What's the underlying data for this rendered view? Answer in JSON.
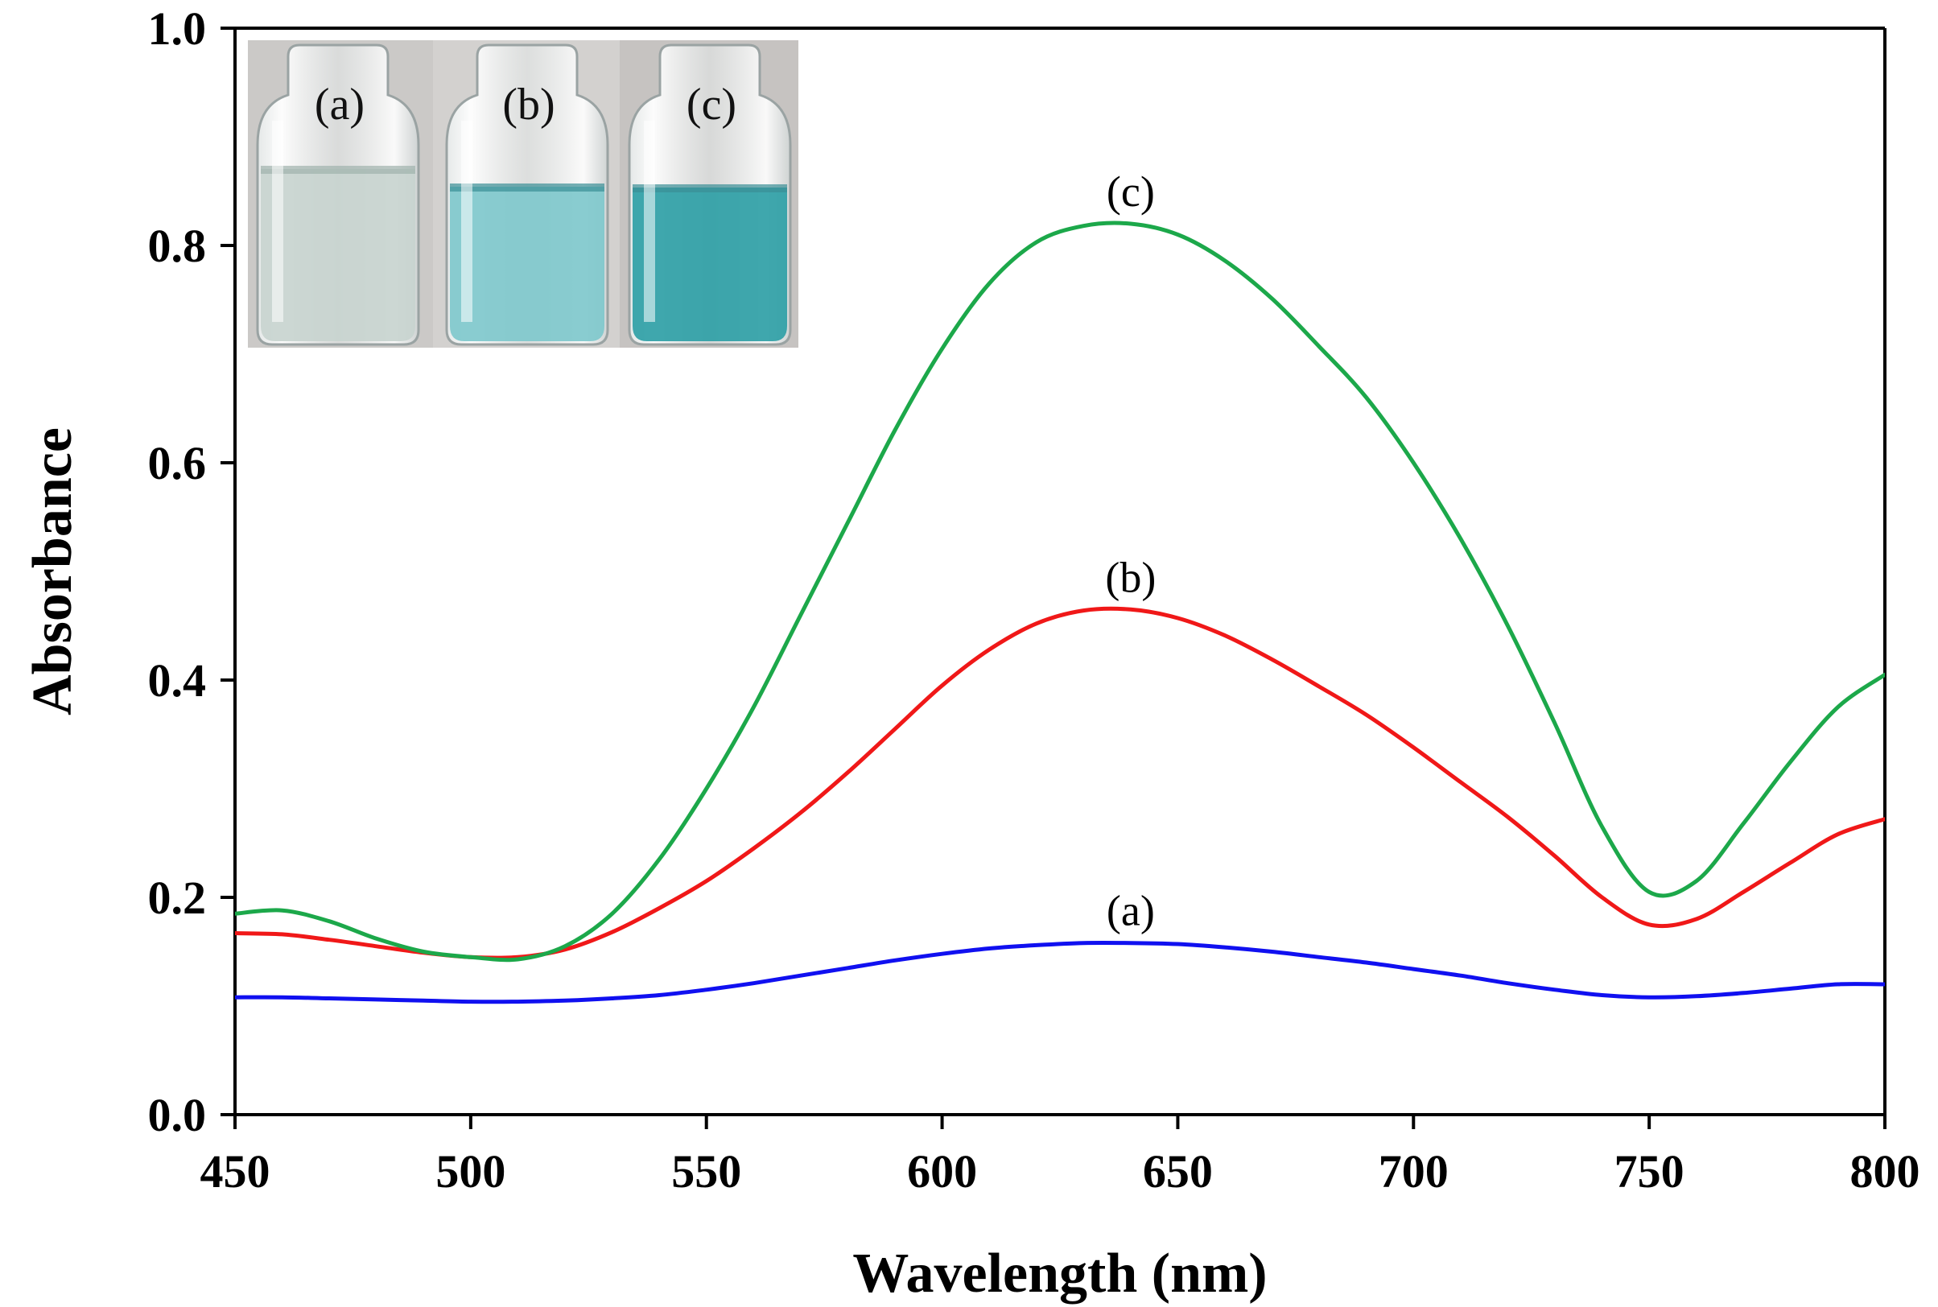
{
  "chart_data": {
    "type": "line",
    "title": "",
    "xlabel": "Wavelength (nm)",
    "ylabel": "Absorbance",
    "xlim": [
      450,
      800
    ],
    "ylim": [
      0.0,
      1.0
    ],
    "xticks": [
      450,
      500,
      550,
      600,
      650,
      700,
      750,
      800
    ],
    "xtick_labels": [
      "450",
      "500",
      "550",
      "600",
      "650",
      "700",
      "750",
      "800"
    ],
    "yticks": [
      0.0,
      0.2,
      0.4,
      0.6,
      0.8,
      1.0
    ],
    "ytick_labels": [
      "0.0",
      "0.2",
      "0.4",
      "0.6",
      "0.8",
      "1.0"
    ],
    "grid": false,
    "x": [
      450,
      460,
      470,
      480,
      490,
      500,
      510,
      520,
      530,
      540,
      550,
      560,
      570,
      580,
      590,
      600,
      610,
      620,
      630,
      640,
      650,
      660,
      670,
      680,
      690,
      700,
      710,
      720,
      730,
      740,
      750,
      760,
      770,
      780,
      790,
      800
    ],
    "series": [
      {
        "name": "(a)",
        "color": "#1010f0",
        "values": [
          0.108,
          0.108,
          0.107,
          0.106,
          0.105,
          0.104,
          0.104,
          0.105,
          0.107,
          0.11,
          0.115,
          0.121,
          0.128,
          0.135,
          0.142,
          0.148,
          0.153,
          0.156,
          0.158,
          0.158,
          0.157,
          0.154,
          0.15,
          0.145,
          0.14,
          0.134,
          0.128,
          0.121,
          0.115,
          0.11,
          0.108,
          0.109,
          0.112,
          0.116,
          0.12,
          0.12
        ]
      },
      {
        "name": "(b)",
        "color": "#f01818",
        "values": [
          0.167,
          0.166,
          0.161,
          0.155,
          0.149,
          0.145,
          0.145,
          0.152,
          0.168,
          0.19,
          0.215,
          0.245,
          0.278,
          0.315,
          0.355,
          0.395,
          0.428,
          0.452,
          0.464,
          0.465,
          0.457,
          0.441,
          0.419,
          0.394,
          0.368,
          0.338,
          0.306,
          0.274,
          0.238,
          0.2,
          0.175,
          0.18,
          0.205,
          0.232,
          0.258,
          0.272
        ]
      },
      {
        "name": "(c)",
        "color": "#1ca84a",
        "values": [
          0.185,
          0.188,
          0.178,
          0.162,
          0.15,
          0.145,
          0.143,
          0.155,
          0.185,
          0.235,
          0.3,
          0.375,
          0.46,
          0.545,
          0.63,
          0.705,
          0.765,
          0.803,
          0.818,
          0.82,
          0.81,
          0.786,
          0.751,
          0.707,
          0.66,
          0.6,
          0.53,
          0.45,
          0.36,
          0.265,
          0.205,
          0.215,
          0.268,
          0.325,
          0.375,
          0.405
        ]
      }
    ],
    "annotations": [
      {
        "text": "(a)",
        "series": "(a)",
        "x": 640,
        "y": 0.158
      },
      {
        "text": "(b)",
        "series": "(b)",
        "x": 640,
        "y": 0.465
      },
      {
        "text": "(c)",
        "series": "(c)",
        "x": 640,
        "y": 0.82
      }
    ],
    "inset_photo": {
      "description_labels": [
        "(a)",
        "(b)",
        "(c)"
      ],
      "liquid_colors": [
        "#c8d4cf",
        "#7fc8cc",
        "#2f9fa6"
      ]
    }
  }
}
